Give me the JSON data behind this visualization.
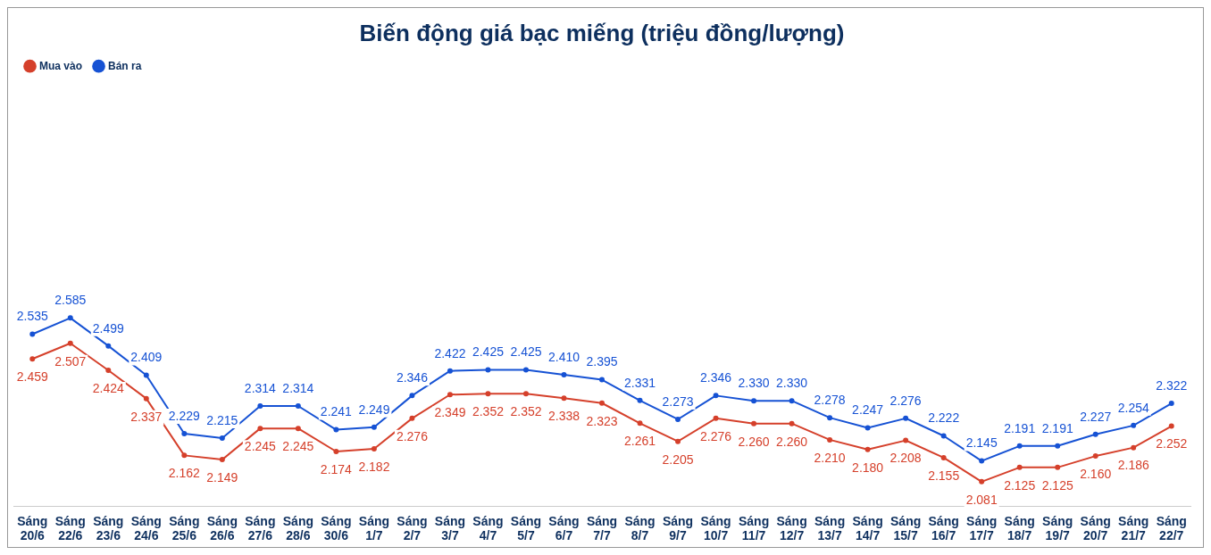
{
  "chart_data": {
    "type": "line",
    "title": "Biến động giá bạc miếng (triệu đồng/lượng)",
    "categories": [
      "Sáng 20/6",
      "Sáng 22/6",
      "Sáng 23/6",
      "Sáng 24/6",
      "Sáng 25/6",
      "Sáng 26/6",
      "Sáng 27/6",
      "Sáng 28/6",
      "Sáng 30/6",
      "Sáng 1/7",
      "Sáng 2/7",
      "Sáng 3/7",
      "Sáng 4/7",
      "Sáng 5/7",
      "Sáng 6/7",
      "Sáng 7/7",
      "Sáng 8/7",
      "Sáng 9/7",
      "Sáng 10/7",
      "Sáng 11/7",
      "Sáng 12/7",
      "Sáng 13/7",
      "Sáng 14/7",
      "Sáng 15/7",
      "Sáng 16/7",
      "Sáng 17/7",
      "Sáng 18/7",
      "Sáng 19/7",
      "Sáng 20/7",
      "Sáng 21/7",
      "Sáng 22/7"
    ],
    "series": [
      {
        "name": "Mua vào",
        "color": "#d5402b",
        "values": [
          2.459,
          2.507,
          2.424,
          2.337,
          2.162,
          2.149,
          2.245,
          2.245,
          2.174,
          2.182,
          2.276,
          2.349,
          2.352,
          2.352,
          2.338,
          2.323,
          2.261,
          2.205,
          2.276,
          2.26,
          2.26,
          2.21,
          2.18,
          2.208,
          2.155,
          2.081,
          2.125,
          2.125,
          2.16,
          2.186,
          2.252
        ],
        "value_labels": [
          "2.459",
          "2.507",
          "2.424",
          "2.337",
          "2.162",
          "2.149",
          "2.245",
          "2.245",
          "2.174",
          "2.182",
          "2.276",
          "2.349",
          "2.352",
          "2.352",
          "2.338",
          "2.323",
          "2.261",
          "2.205",
          "2.276",
          "2.260",
          "2.260",
          "2.210",
          "2.180",
          "2.208",
          "2.155",
          "2.081",
          "2.125",
          "2.125",
          "2.160",
          "2.186",
          "2.252"
        ]
      },
      {
        "name": "Bán ra",
        "color": "#1652d4",
        "values": [
          2.535,
          2.585,
          2.499,
          2.409,
          2.229,
          2.215,
          2.314,
          2.314,
          2.241,
          2.249,
          2.346,
          2.422,
          2.425,
          2.425,
          2.41,
          2.395,
          2.331,
          2.273,
          2.346,
          2.33,
          2.33,
          2.278,
          2.247,
          2.276,
          2.222,
          2.145,
          2.191,
          2.191,
          2.227,
          2.254,
          2.322
        ],
        "value_labels": [
          "2.535",
          "2.585",
          "2.499",
          "2.409",
          "2.229",
          "2.215",
          "2.314",
          "2.314",
          "2.241",
          "2.249",
          "2.346",
          "2.422",
          "2.425",
          "2.425",
          "2.410",
          "2.395",
          "2.331",
          "2.273",
          "2.346",
          "2.330",
          "2.330",
          "2.278",
          "2.247",
          "2.276",
          "2.222",
          "2.145",
          "2.191",
          "2.191",
          "2.227",
          "2.254",
          "2.322"
        ]
      }
    ],
    "legend": "top left",
    "grid": false,
    "marker": "circle",
    "line_style": "solid",
    "tick_labels": "x"
  }
}
